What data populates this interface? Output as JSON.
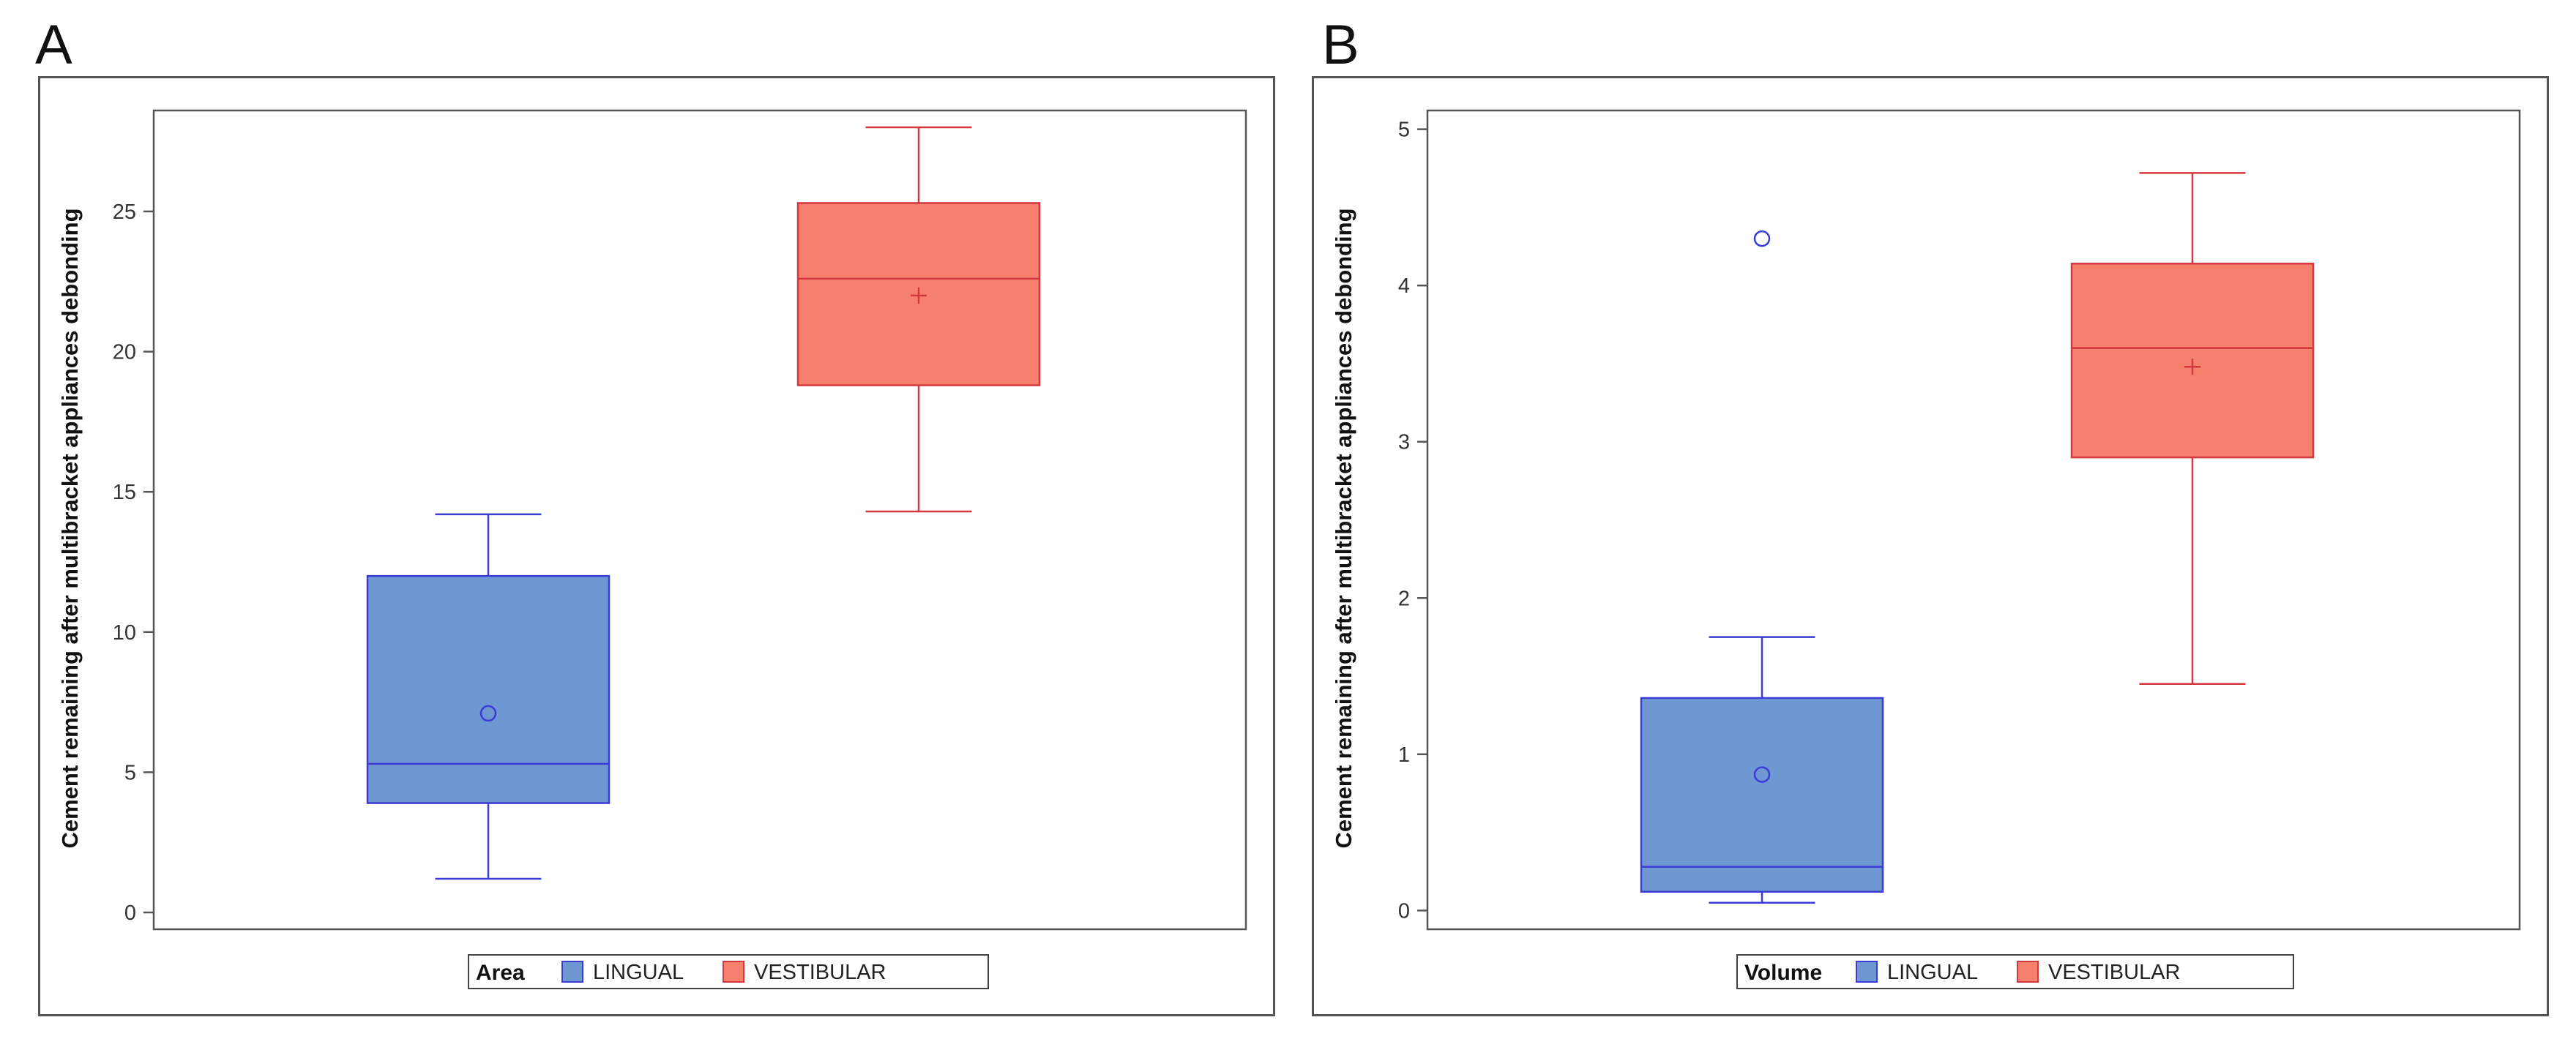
{
  "panels": [
    {
      "letter": "A",
      "chart_data": {
        "type": "boxplot",
        "ylabel": "Cement remaining after multibracket appliances debonding",
        "ylim": [
          -0.6,
          28.6
        ],
        "yticks": [
          0,
          5,
          10,
          15,
          20,
          25
        ],
        "legend": {
          "title": "Area",
          "placement": "bottom"
        },
        "series": [
          {
            "name": "LINGUAL",
            "color": "#6f97d1",
            "stroke": "#3b3bd6",
            "min": 1.2,
            "q1": 3.9,
            "median": 5.3,
            "q3": 12.0,
            "max": 14.2,
            "mean": 7.1,
            "mean_marker": "circle",
            "outliers": []
          },
          {
            "name": "VESTIBULAR",
            "color": "#f6806e",
            "stroke": "#d4383f",
            "min": 14.3,
            "q1": 18.8,
            "median": 22.6,
            "q3": 25.3,
            "max": 28.0,
            "mean": 22.0,
            "mean_marker": "plus",
            "outliers": []
          }
        ]
      }
    },
    {
      "letter": "B",
      "chart_data": {
        "type": "boxplot",
        "ylabel": "Cement remaining after multibracket appliances debonding",
        "ylim": [
          -0.12,
          5.12
        ],
        "yticks": [
          0,
          1,
          2,
          3,
          4,
          5
        ],
        "legend": {
          "title": "Volume",
          "placement": "bottom"
        },
        "series": [
          {
            "name": "LINGUAL",
            "color": "#6f97d1",
            "stroke": "#3b3bd6",
            "min": 0.05,
            "q1": 0.12,
            "median": 0.28,
            "q3": 1.36,
            "max": 1.75,
            "mean": 0.87,
            "mean_marker": "circle",
            "outliers": [
              4.3
            ]
          },
          {
            "name": "VESTIBULAR",
            "color": "#f6806e",
            "stroke": "#d4383f",
            "min": 1.45,
            "q1": 2.9,
            "median": 3.6,
            "q3": 4.14,
            "max": 4.72,
            "mean": 3.48,
            "mean_marker": "plus",
            "outliers": []
          }
        ]
      }
    }
  ]
}
